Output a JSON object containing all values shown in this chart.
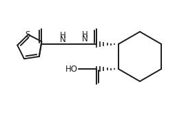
{
  "background_color": "#ffffff",
  "line_color": "#1a1a1a",
  "text_color": "#1a1a1a",
  "line_width": 1.4,
  "font_size": 8.5,
  "figsize": [
    2.54,
    1.77
  ],
  "dpi": 100,
  "xlim": [
    0,
    254
  ],
  "ylim": [
    0,
    177
  ]
}
